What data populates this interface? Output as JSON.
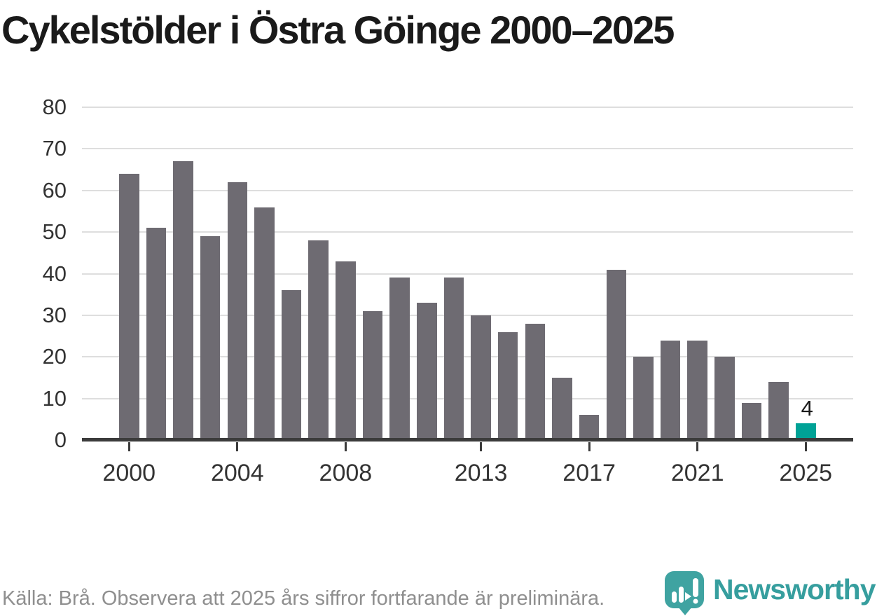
{
  "title": "Cykelstölder i Östra Göinge 2000–2025",
  "chart_data": {
    "type": "bar",
    "categories": [
      2000,
      2001,
      2002,
      2003,
      2004,
      2005,
      2006,
      2007,
      2008,
      2009,
      2010,
      2011,
      2012,
      2013,
      2014,
      2015,
      2016,
      2017,
      2018,
      2019,
      2020,
      2021,
      2022,
      2023,
      2024,
      2025
    ],
    "values": [
      64,
      51,
      67,
      49,
      62,
      56,
      36,
      48,
      43,
      31,
      39,
      33,
      39,
      30,
      26,
      28,
      15,
      6,
      41,
      20,
      24,
      24,
      20,
      9,
      14,
      4
    ],
    "title": "Cykelstölder i Östra Göinge 2000–2025",
    "xlabel": "",
    "ylabel": "",
    "ylim": [
      0,
      80
    ],
    "y_ticks": [
      0,
      10,
      20,
      30,
      40,
      50,
      60,
      70,
      80
    ],
    "x_tick_labels": [
      "2000",
      "2004",
      "2008",
      "2013",
      "2017",
      "2021",
      "2025"
    ],
    "grid": "horizontal",
    "legend_position": "none",
    "bar_color": "#6e6b72",
    "highlight_year": 2025,
    "highlight_color": "#00a296",
    "highlight_value_label": "4"
  },
  "footer": {
    "source_note": "Källa: Brå. Observera att 2025 års siffror fortfarande är preliminära."
  },
  "branding": {
    "logo_text": "Newsworthy",
    "logo_color": "#369e9e",
    "logo_mark": "bar-chart-speech-bubble-icon"
  }
}
